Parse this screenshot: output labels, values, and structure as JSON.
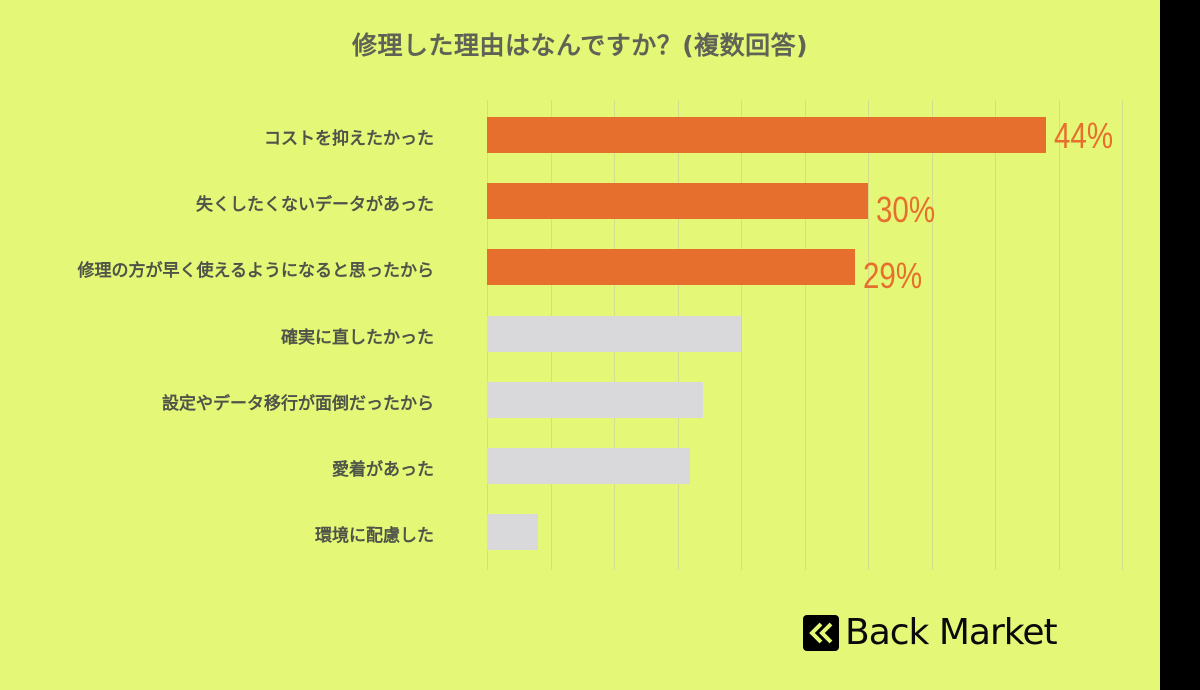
{
  "title": "修理した理由はなんですか？(複数回答)",
  "brand": {
    "name": "Back Market",
    "icon": "double-chevron-left-icon"
  },
  "colors": {
    "background": "#e4f777",
    "highlight": "#e76f2e",
    "muted": "#d9d9dc",
    "text": "#4f5449",
    "grid": "#d6dc8c"
  },
  "chart_data": {
    "type": "bar",
    "orientation": "horizontal",
    "title": "修理した理由はなんですか？(複数回答)",
    "xlabel": "",
    "ylabel": "",
    "xlim": [
      0,
      50
    ],
    "grid": true,
    "grid_step": 5,
    "categories": [
      "コストを抑えたかった",
      "失くしたくないデータがあった",
      "修理の方が早く使えるようになると思ったから",
      "確実に直したかった",
      "設定やデータ移行が面倒だったから",
      "愛着があった",
      "環境に配慮した"
    ],
    "values": [
      44,
      30,
      29,
      20,
      17,
      16,
      4
    ],
    "labels": [
      "44%",
      "30%",
      "29%",
      "",
      "",
      "",
      ""
    ],
    "highlighted": [
      true,
      true,
      true,
      false,
      false,
      false,
      false
    ],
    "unit": "%"
  }
}
